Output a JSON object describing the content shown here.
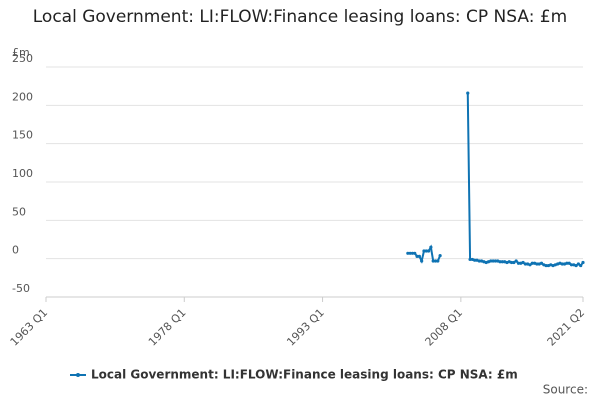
{
  "chart_data": {
    "type": "line",
    "title": "Local Government: LI:FLOW:Finance leasing loans: CP NSA: £m",
    "y_label": "£m",
    "source": "Source:",
    "x": [
      "2002 Q2",
      "2002 Q3",
      "2002 Q4",
      "2003 Q1",
      "2003 Q2",
      "2003 Q3",
      "2003 Q4",
      "2004 Q1",
      "2004 Q2",
      "2004 Q3",
      "2004 Q4",
      "2005 Q1",
      "2005 Q2",
      "2005 Q3",
      "2005 Q4",
      "2006 Q1",
      "2006 Q2",
      "2006 Q3",
      "2006 Q4",
      "2007 Q1",
      "2007 Q2",
      "2007 Q3",
      "2007 Q4",
      "2008 Q1",
      "2008 Q2",
      "2008 Q3",
      "2008 Q4",
      "2009 Q1",
      "2009 Q2",
      "2009 Q3",
      "2009 Q4",
      "2010 Q1",
      "2010 Q2",
      "2010 Q3",
      "2010 Q4",
      "2011 Q1",
      "2011 Q2",
      "2011 Q3",
      "2011 Q4",
      "2012 Q1",
      "2012 Q2",
      "2012 Q3",
      "2012 Q4",
      "2013 Q1",
      "2013 Q2",
      "2013 Q3",
      "2013 Q4",
      "2014 Q1",
      "2014 Q2",
      "2014 Q3",
      "2014 Q4",
      "2015 Q1",
      "2015 Q2",
      "2015 Q3",
      "2015 Q4",
      "2016 Q1",
      "2016 Q2",
      "2016 Q3",
      "2016 Q4",
      "2017 Q1",
      "2017 Q2",
      "2017 Q3",
      "2017 Q4",
      "2018 Q1",
      "2018 Q2",
      "2018 Q3",
      "2018 Q4",
      "2019 Q1",
      "2019 Q2",
      "2019 Q3",
      "2019 Q4",
      "2020 Q1",
      "2020 Q2",
      "2020 Q3",
      "2020 Q4",
      "2021 Q1",
      "2021 Q2"
    ],
    "series": [
      {
        "name": "Local Government: LI:FLOW:Finance leasing loans: CP NSA: £m",
        "color": "#0f73b3",
        "values": [
          7,
          7,
          7,
          7,
          3,
          3,
          -3,
          10,
          10,
          10,
          15,
          -3,
          -3,
          -3,
          4,
          null,
          null,
          null,
          null,
          null,
          null,
          null,
          null,
          null,
          null,
          null,
          216,
          -1,
          -1,
          -2,
          -2,
          -3,
          -3,
          -4,
          -5,
          -4,
          -3,
          -3,
          -3,
          -3,
          -4,
          -4,
          -4,
          -5,
          -4,
          -5,
          -5,
          -3,
          -6,
          -6,
          -5,
          -7,
          -7,
          -8,
          -6,
          -6,
          -7,
          -7,
          -6,
          -8,
          -9,
          -9,
          -8,
          -9,
          -8,
          -7,
          -6,
          -7,
          -7,
          -6,
          -6,
          -8,
          -8,
          -9,
          -7,
          -9,
          -5
        ]
      }
    ],
    "xlim": [
      "1963 Q1",
      "2021 Q2"
    ],
    "xticks": [
      "1963 Q1",
      "1978 Q1",
      "1993 Q1",
      "2008 Q1",
      "2021 Q2"
    ],
    "ylim": [
      -50,
      250
    ],
    "yticks": [
      -50,
      0,
      50,
      100,
      150,
      200,
      250
    ],
    "grid": true
  }
}
